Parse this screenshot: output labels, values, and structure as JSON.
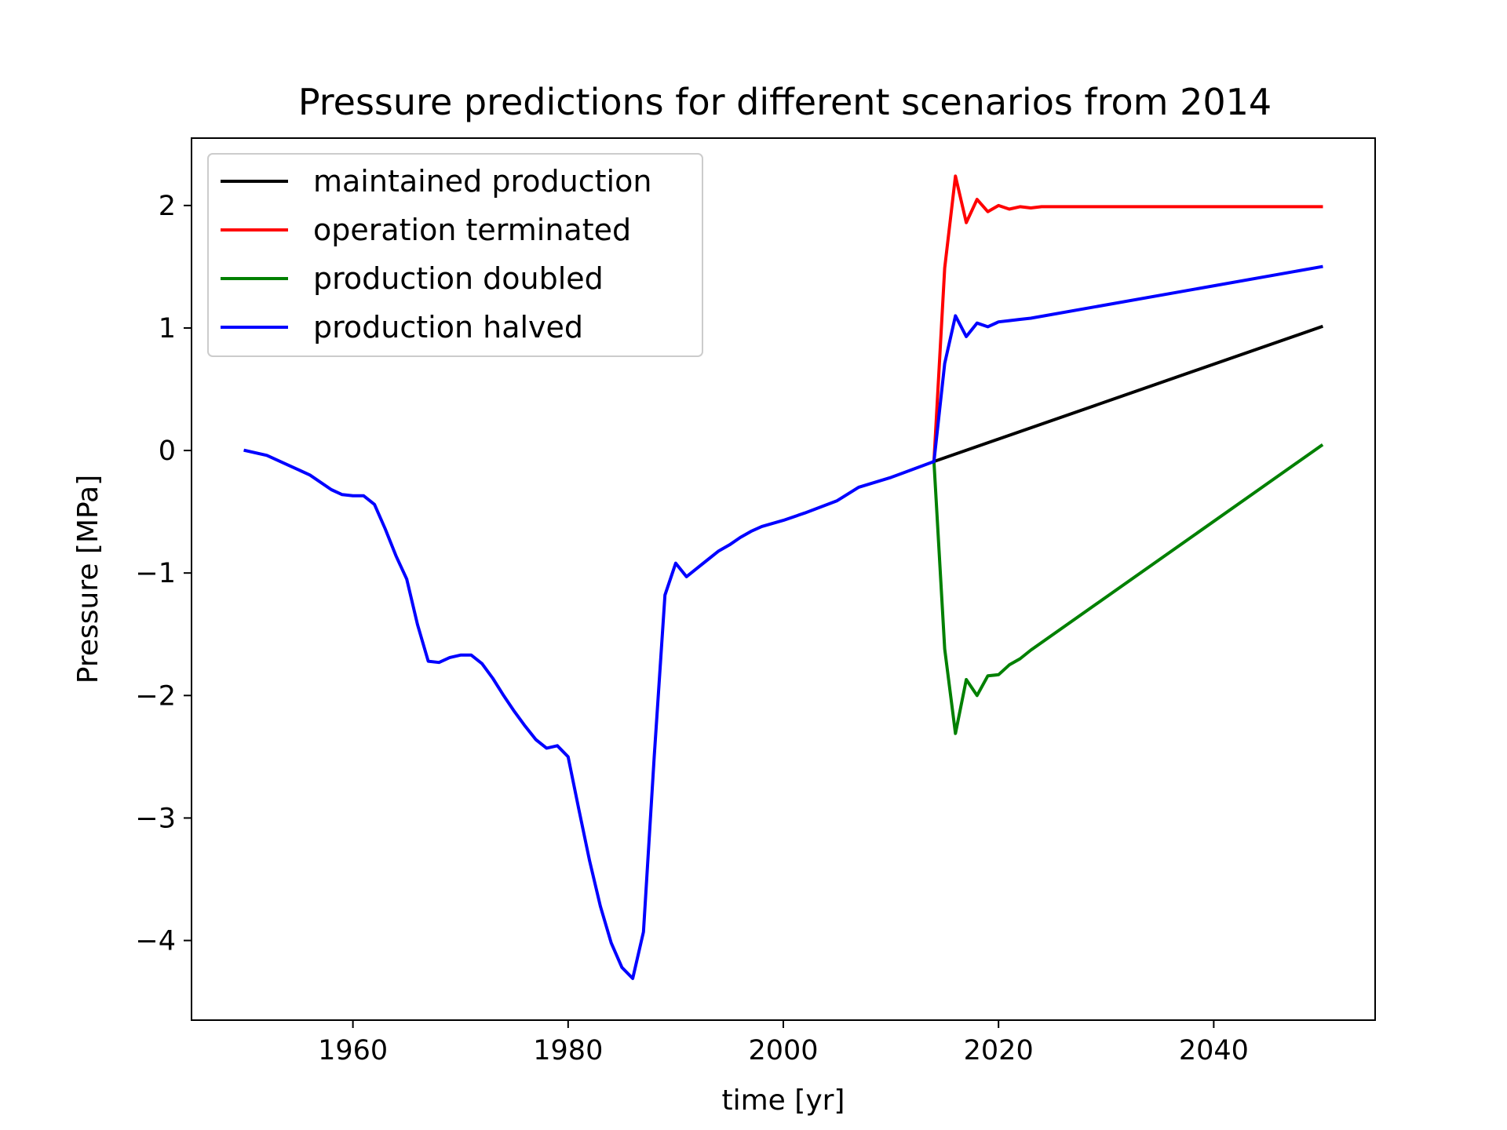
{
  "chart_data": {
    "type": "line",
    "title": "Pressure predictions for different scenarios from 2014",
    "xlabel": "time [yr]",
    "ylabel": "Pressure [MPa]",
    "xlim": [
      1945,
      2055
    ],
    "ylim": [
      -4.65,
      2.55
    ],
    "xticks": [
      1960,
      1980,
      2000,
      2020,
      2040
    ],
    "xtick_labels": [
      "1960",
      "1980",
      "2000",
      "2020",
      "2040"
    ],
    "yticks": [
      -4,
      -3,
      -2,
      -1,
      0,
      1,
      2
    ],
    "ytick_labels": [
      "−4",
      "−3",
      "−2",
      "−1",
      "0",
      "1",
      "2"
    ],
    "grid": false,
    "legend_position": "upper-left",
    "series": [
      {
        "name": "maintained production",
        "color": "#000000",
        "x": [
          2014,
          2050
        ],
        "y": [
          -0.09,
          1.01
        ]
      },
      {
        "name": "operation terminated",
        "color": "#ff0000",
        "x": [
          2014,
          2015,
          2016,
          2017,
          2018,
          2019,
          2020,
          2021,
          2022,
          2023,
          2024,
          2030,
          2040,
          2050
        ],
        "y": [
          -0.09,
          1.49,
          2.24,
          1.86,
          2.05,
          1.95,
          2.0,
          1.97,
          1.99,
          1.98,
          1.99,
          1.99,
          1.99,
          1.99
        ]
      },
      {
        "name": "production doubled",
        "color": "#008000",
        "x": [
          2014,
          2015,
          2016,
          2017,
          2018,
          2019,
          2020,
          2021,
          2022,
          2023,
          2050
        ],
        "y": [
          -0.09,
          -1.62,
          -2.31,
          -1.87,
          -2.0,
          -1.84,
          -1.83,
          -1.75,
          -1.7,
          -1.63,
          0.04
        ]
      },
      {
        "name": "production halved",
        "color": "#0000ff",
        "x": [
          1950,
          1952,
          1954,
          1956,
          1958,
          1959,
          1960,
          1961,
          1962,
          1963,
          1964,
          1965,
          1966,
          1967,
          1968,
          1969,
          1970,
          1971,
          1972,
          1973,
          1974,
          1975,
          1976,
          1977,
          1978,
          1979,
          1980,
          1981,
          1982,
          1983,
          1984,
          1985,
          1986,
          1987,
          1988,
          1989,
          1990,
          1991,
          1992,
          1993,
          1994,
          1995,
          1996,
          1997,
          1998,
          2000,
          2002,
          2005,
          2007,
          2010,
          2014,
          2015,
          2016,
          2017,
          2018,
          2019,
          2020,
          2021,
          2022,
          2023,
          2050
        ],
        "y": [
          0.0,
          -0.04,
          -0.12,
          -0.2,
          -0.32,
          -0.36,
          -0.37,
          -0.37,
          -0.44,
          -0.64,
          -0.86,
          -1.05,
          -1.42,
          -1.72,
          -1.73,
          -1.69,
          -1.67,
          -1.67,
          -1.74,
          -1.86,
          -2.0,
          -2.13,
          -2.25,
          -2.36,
          -2.43,
          -2.41,
          -2.5,
          -2.93,
          -3.35,
          -3.72,
          -4.02,
          -4.22,
          -4.31,
          -3.93,
          -2.5,
          -1.18,
          -0.92,
          -1.03,
          -0.96,
          -0.89,
          -0.82,
          -0.77,
          -0.71,
          -0.66,
          -0.62,
          -0.57,
          -0.51,
          -0.41,
          -0.3,
          -0.22,
          -0.09,
          0.71,
          1.1,
          0.93,
          1.04,
          1.01,
          1.05,
          1.06,
          1.07,
          1.08,
          1.5
        ]
      }
    ]
  }
}
